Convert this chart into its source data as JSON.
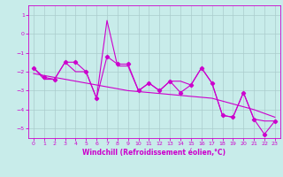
{
  "xlabel": "Windchill (Refroidissement éolien,°C)",
  "bg_color": "#c8ecea",
  "line_color": "#cc00cc",
  "grid_color": "#aacccc",
  "x_values": [
    0,
    1,
    2,
    3,
    4,
    5,
    6,
    7,
    8,
    9,
    10,
    11,
    12,
    13,
    14,
    15,
    16,
    17,
    18,
    19,
    20,
    21,
    22,
    23
  ],
  "y_main": [
    -1.8,
    -2.3,
    -2.4,
    -1.5,
    -1.5,
    -2.0,
    -3.4,
    -1.2,
    -1.6,
    -1.6,
    -3.0,
    -2.6,
    -3.0,
    -2.5,
    -3.1,
    -2.7,
    -1.8,
    -2.6,
    -4.3,
    -4.4,
    -3.1,
    -4.5,
    -5.3,
    -4.6
  ],
  "y_smooth": [
    -1.8,
    -2.4,
    -2.4,
    -1.5,
    -2.0,
    -2.0,
    -3.4,
    0.7,
    -1.7,
    -1.7,
    -3.0,
    -2.6,
    -3.0,
    -2.5,
    -2.5,
    -2.7,
    -1.8,
    -2.6,
    -4.3,
    -4.4,
    -3.1,
    -4.5,
    -4.6,
    -4.6
  ],
  "y_trend": [
    -2.1,
    -2.2,
    -2.3,
    -2.4,
    -2.5,
    -2.6,
    -2.7,
    -2.8,
    -2.9,
    -3.0,
    -3.05,
    -3.1,
    -3.15,
    -3.2,
    -3.25,
    -3.3,
    -3.35,
    -3.4,
    -3.55,
    -3.7,
    -3.85,
    -4.0,
    -4.2,
    -4.4
  ],
  "ylim": [
    -5.5,
    1.5
  ],
  "xlim": [
    -0.5,
    23.5
  ],
  "yticks": [
    -5,
    -4,
    -3,
    -2,
    -1,
    0,
    1
  ],
  "xticks": [
    0,
    1,
    2,
    3,
    4,
    5,
    6,
    7,
    8,
    9,
    10,
    11,
    12,
    13,
    14,
    15,
    16,
    17,
    18,
    19,
    20,
    21,
    22,
    23
  ],
  "tick_fontsize": 4.5,
  "xlabel_fontsize": 5.5,
  "lw": 0.8,
  "marker_size": 2.2
}
